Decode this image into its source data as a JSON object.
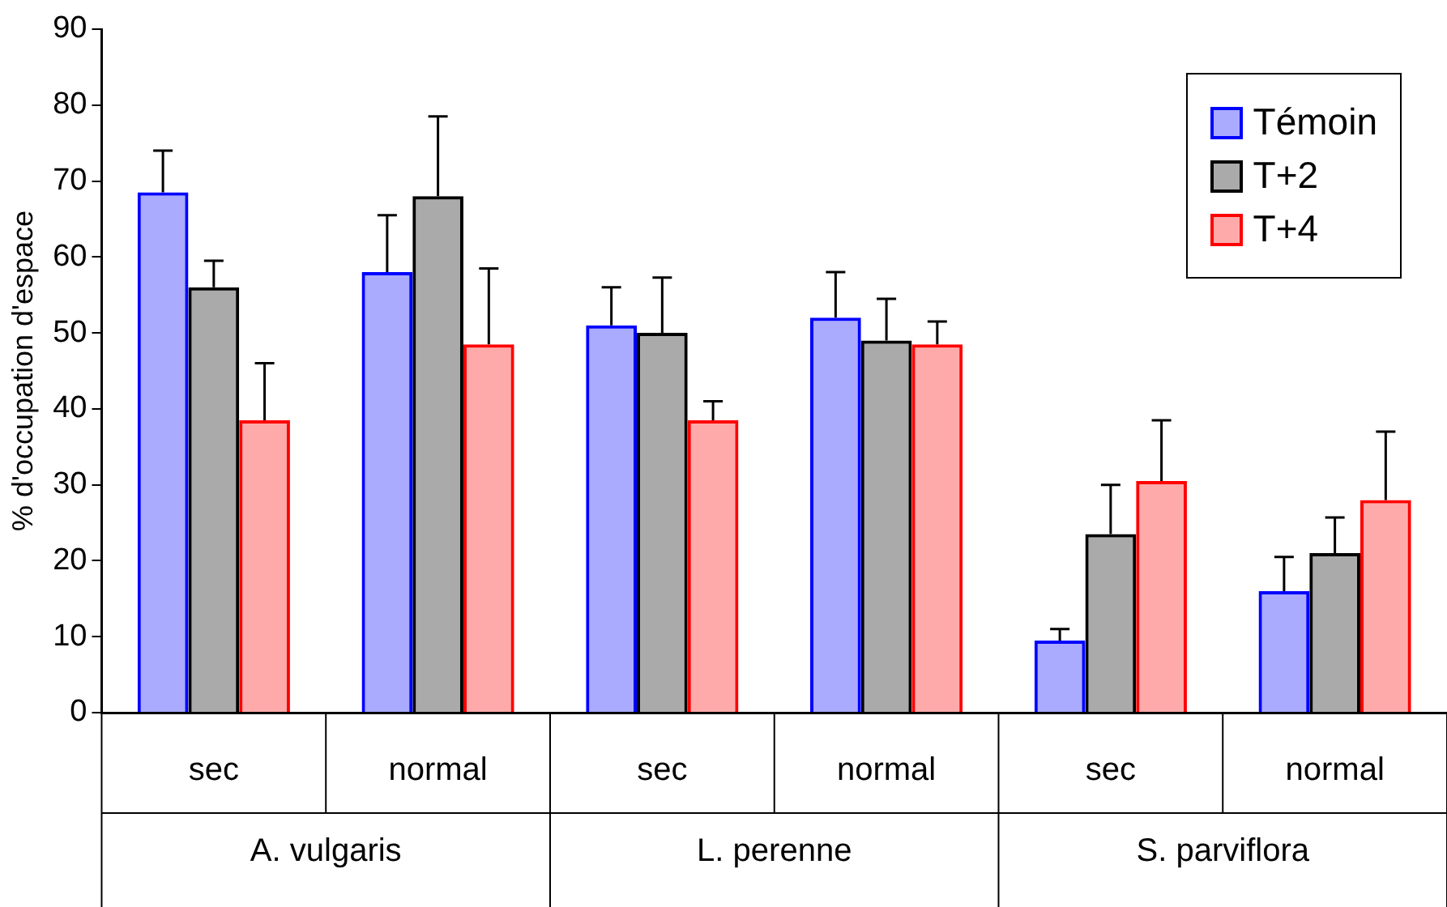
{
  "chart_data": {
    "type": "bar",
    "ylabel": "% d'occupation d'espace",
    "categories": [
      "sec",
      "normal",
      "sec",
      "normal",
      "sec",
      "normal"
    ],
    "annotations": [
      "A. vulgaris",
      "L. perenne",
      "S. parviflora"
    ],
    "series": [
      {
        "name": "Témoin",
        "color": "#0000ff",
        "values": [
          68.5,
          58,
          51,
          52,
          9.5,
          16
        ],
        "errors": [
          [
            68.5,
            74
          ],
          [
            58,
            65.5
          ],
          [
            51,
            56
          ],
          [
            52,
            58
          ],
          [
            9.5,
            11
          ],
          [
            16,
            20.5
          ]
        ]
      },
      {
        "name": "T+2",
        "color": "#000000",
        "values": [
          56,
          68,
          50,
          49,
          23.5,
          21
        ],
        "errors": [
          [
            56,
            59.5
          ],
          [
            68,
            78.5
          ],
          [
            50,
            57.3
          ],
          [
            49,
            54.5
          ],
          [
            23.5,
            30
          ],
          [
            21,
            25.7
          ]
        ]
      },
      {
        "name": "T+4",
        "color": "#ff0000",
        "values": [
          38.5,
          48.5,
          38.5,
          48.5,
          30.5,
          28
        ],
        "errors": [
          [
            38.5,
            46
          ],
          [
            48.5,
            58.5
          ],
          [
            38.5,
            41
          ],
          [
            48.5,
            51.5
          ],
          [
            30.5,
            38.5
          ],
          [
            28,
            37
          ]
        ]
      }
    ],
    "ylim": [
      0,
      90
    ],
    "yticks": [
      0,
      10,
      20,
      30,
      40,
      50,
      60,
      70,
      80,
      90
    ],
    "grid": false,
    "legend": "top right"
  }
}
